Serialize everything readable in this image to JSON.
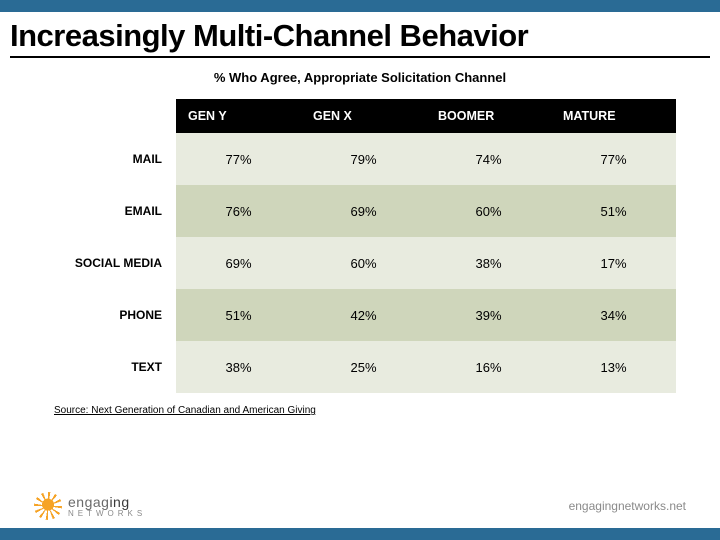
{
  "title": "Increasingly Multi-Channel Behavior",
  "subtitle": "% Who Agree, Appropriate Solicitation Channel",
  "table": {
    "columns": [
      "GEN Y",
      "GEN X",
      "BOOMER",
      "MATURE"
    ],
    "rows": [
      {
        "label": "MAIL",
        "values": [
          "77%",
          "79%",
          "74%",
          "77%"
        ]
      },
      {
        "label": "EMAIL",
        "values": [
          "76%",
          "69%",
          "60%",
          "51%"
        ]
      },
      {
        "label": "SOCIAL MEDIA",
        "values": [
          "69%",
          "60%",
          "38%",
          "17%"
        ]
      },
      {
        "label": "PHONE",
        "values": [
          "51%",
          "42%",
          "39%",
          "34%"
        ]
      },
      {
        "label": "TEXT",
        "values": [
          "38%",
          "25%",
          "16%",
          "13%"
        ]
      }
    ],
    "header_bg": "#000000",
    "header_fg": "#ffffff",
    "row_colors": [
      "#e8ebdf",
      "#cfd6bb",
      "#e8ebdf",
      "#cfd6bb",
      "#e8ebdf"
    ],
    "rowlabel_fontsize": 12,
    "cell_fontsize": 13,
    "header_fontsize": 12.5
  },
  "source": "Source: Next Generation of Canadian and American Giving",
  "footer": {
    "brand_line1a": "engag",
    "brand_line1b": "ing",
    "brand_line2": "NETWORKS",
    "url": "engagingnetworks.net"
  },
  "colors": {
    "page_bg": "#2a6b95",
    "slide_bg": "#ffffff",
    "title_fg": "#000000",
    "accent_orange": "#f6a325",
    "footer_fg": "#8a8a8a"
  }
}
